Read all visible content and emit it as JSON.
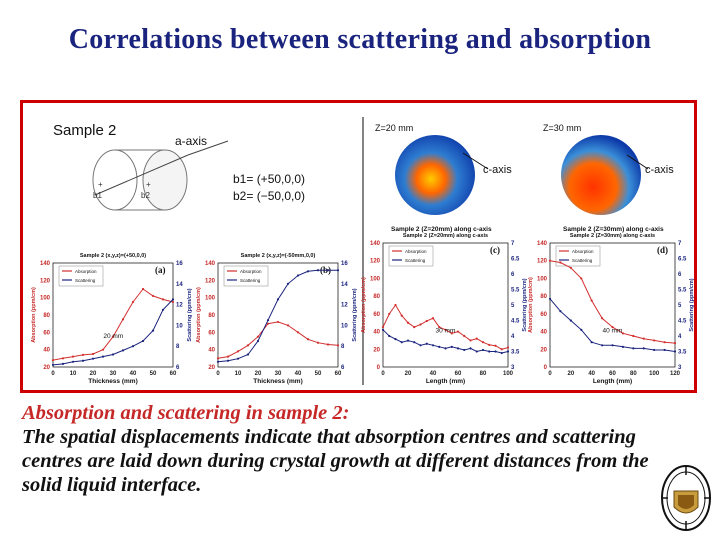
{
  "title": "Correlations between scattering and absorption",
  "figure": {
    "sample_label": "Sample 2",
    "axis_label": "a-axis",
    "b1_marker": "b1",
    "b2_marker": "b2",
    "b1_text": "b1= (+50,0,0)",
    "b2_text": "b2= (−50,0,0)",
    "map1_label": "Z=20 mm",
    "map2_label": "Z=30 mm",
    "c_axis": "c-axis",
    "map1_caption": "Sample 2 (Z=20mm) along c-axis",
    "map2_caption": "Sample 2 (Z=30mm) along c-axis"
  },
  "chart_data": [
    {
      "type": "line",
      "panel": "(a)",
      "title": "Sample 2 (x,y,z)=(+50,0,0)",
      "xlabel": "Thickness (mm)",
      "ylabel": "Absorption (ppm/cm)",
      "y2label": "Scattering (ppm/cm)",
      "xlim": [
        0,
        60
      ],
      "ylim": [
        20,
        140
      ],
      "y2lim": [
        6,
        16
      ],
      "xticks": [
        "0",
        "10",
        "20",
        "30",
        "40",
        "50",
        "60"
      ],
      "yticks": [
        "20",
        "40",
        "60",
        "80",
        "100",
        "120",
        "140"
      ],
      "y2ticks": [
        "6",
        "8",
        "10",
        "12",
        "14",
        "16"
      ],
      "annotation": "20 mm",
      "legend": [
        "Absorption",
        "Scattering"
      ],
      "series": [
        {
          "name": "Absorption",
          "axis": "left",
          "color": "#d32f2f",
          "x": [
            0,
            5,
            10,
            15,
            20,
            25,
            30,
            35,
            40,
            45,
            50,
            55,
            60
          ],
          "y": [
            28,
            30,
            32,
            34,
            35,
            40,
            55,
            75,
            95,
            110,
            102,
            98,
            95
          ]
        },
        {
          "name": "Scattering",
          "axis": "right",
          "color": "#1a237e",
          "x": [
            0,
            5,
            10,
            15,
            20,
            25,
            30,
            35,
            40,
            45,
            50,
            55,
            60
          ],
          "y": [
            6.2,
            6.3,
            6.5,
            6.6,
            6.8,
            7.0,
            7.2,
            7.6,
            8.0,
            8.5,
            9.5,
            11.5,
            12.5
          ]
        }
      ]
    },
    {
      "type": "line",
      "panel": "(b)",
      "title": "Sample 2 (x,y,z)=(-50mm,0,0)",
      "xlabel": "Thickness (mm)",
      "ylabel": "Absorption (ppm/cm)",
      "y2label": "Scattering (ppm/cm)",
      "xlim": [
        0,
        60
      ],
      "ylim": [
        20,
        140
      ],
      "y2lim": [
        6,
        16
      ],
      "xticks": [
        "0",
        "10",
        "20",
        "30",
        "40",
        "50",
        "60"
      ],
      "yticks": [
        "20",
        "40",
        "60",
        "80",
        "100",
        "120",
        "140"
      ],
      "y2ticks": [
        "6",
        "8",
        "10",
        "12",
        "14",
        "16"
      ],
      "legend": [
        "Absorption",
        "Scattering"
      ],
      "series": [
        {
          "name": "Absorption",
          "axis": "left",
          "color": "#d32f2f",
          "x": [
            0,
            5,
            10,
            15,
            20,
            25,
            30,
            35,
            40,
            45,
            50,
            55,
            60
          ],
          "y": [
            30,
            32,
            38,
            45,
            55,
            70,
            72,
            68,
            60,
            52,
            48,
            46,
            45
          ]
        },
        {
          "name": "Scattering",
          "axis": "right",
          "color": "#1a237e",
          "x": [
            0,
            5,
            10,
            15,
            20,
            25,
            30,
            35,
            40,
            45,
            50,
            55,
            60
          ],
          "y": [
            6.5,
            6.6,
            6.8,
            7.2,
            8.5,
            10.5,
            12.5,
            14.0,
            14.8,
            15.2,
            15.3,
            15.3,
            15.3
          ]
        }
      ]
    },
    {
      "type": "line",
      "panel": "(c)",
      "title": "Sample 2 (Z=20mm) along c-axis",
      "xlabel": "Length (mm)",
      "ylabel": "Absorption (ppm/cm)",
      "y2label": "Scattering (ppm/cm)",
      "xlim": [
        0,
        100
      ],
      "ylim": [
        0,
        140
      ],
      "y2lim": [
        3,
        7
      ],
      "xticks": [
        "0",
        "20",
        "40",
        "60",
        "80",
        "100"
      ],
      "yticks": [
        "0",
        "20",
        "40",
        "60",
        "80",
        "100",
        "120",
        "140"
      ],
      "y2ticks": [
        "3",
        "3.5",
        "4",
        "4.5",
        "5",
        "5.5",
        "6",
        "6.5",
        "7"
      ],
      "annotation": "30 mm",
      "legend": [
        "Absorption",
        "Scattering"
      ],
      "series": [
        {
          "name": "Absorption",
          "axis": "left",
          "color": "#d32f2f",
          "x": [
            0,
            5,
            10,
            15,
            20,
            25,
            30,
            35,
            40,
            45,
            50,
            55,
            60,
            65,
            70,
            75,
            80,
            85,
            90,
            95,
            100
          ],
          "y": [
            45,
            60,
            70,
            58,
            50,
            45,
            48,
            52,
            55,
            45,
            42,
            38,
            40,
            35,
            30,
            32,
            28,
            25,
            24,
            20,
            22
          ]
        },
        {
          "name": "Scattering",
          "axis": "right",
          "color": "#1a237e",
          "x": [
            0,
            5,
            10,
            15,
            20,
            25,
            30,
            35,
            40,
            45,
            50,
            55,
            60,
            65,
            70,
            75,
            80,
            85,
            90,
            95,
            100
          ],
          "y": [
            4.2,
            4.0,
            3.9,
            3.8,
            3.85,
            3.8,
            3.7,
            3.75,
            3.7,
            3.65,
            3.6,
            3.65,
            3.6,
            3.55,
            3.6,
            3.5,
            3.55,
            3.5,
            3.5,
            3.45,
            3.5
          ]
        }
      ]
    },
    {
      "type": "line",
      "panel": "(d)",
      "title": "Sample 2 (Z=30mm) along c-axis",
      "xlabel": "Length (mm)",
      "ylabel": "Absorption (ppm/cm)",
      "y2label": "Scattering (ppm/cm)",
      "xlim": [
        0,
        120
      ],
      "ylim": [
        0,
        140
      ],
      "y2lim": [
        3,
        7
      ],
      "xticks": [
        "0",
        "20",
        "40",
        "60",
        "80",
        "100",
        "120"
      ],
      "yticks": [
        "0",
        "20",
        "40",
        "60",
        "80",
        "100",
        "120",
        "140"
      ],
      "y2ticks": [
        "3",
        "3.5",
        "4",
        "4.5",
        "5",
        "5.5",
        "6",
        "6.5",
        "7"
      ],
      "annotation": "40 mm",
      "legend": [
        "Absorption",
        "Scattering"
      ],
      "series": [
        {
          "name": "Absorption",
          "axis": "left",
          "color": "#d32f2f",
          "x": [
            0,
            10,
            20,
            30,
            40,
            50,
            60,
            70,
            80,
            90,
            100,
            110,
            120
          ],
          "y": [
            120,
            118,
            112,
            100,
            75,
            55,
            45,
            38,
            35,
            32,
            30,
            28,
            27
          ]
        },
        {
          "name": "Scattering",
          "axis": "right",
          "color": "#1a237e",
          "x": [
            0,
            10,
            20,
            30,
            40,
            50,
            60,
            70,
            80,
            90,
            100,
            110,
            120
          ],
          "y": [
            5.2,
            4.8,
            4.5,
            4.2,
            3.8,
            3.7,
            3.7,
            3.65,
            3.6,
            3.6,
            3.55,
            3.55,
            3.5
          ]
        }
      ]
    }
  ],
  "caption": {
    "heading": "Absorption and scattering in sample 2:",
    "body": "The spatial displacements indicate that absorption centres and scattering centres are laid down during crystal growth at different distances from the solid liquid interface."
  },
  "colors": {
    "title": "#1a237e",
    "frame": "#cc0000",
    "caption_heading": "#c62828",
    "absorption": "#d32f2f",
    "scattering": "#1a237e"
  },
  "logo_icon": "university-crest-icon"
}
